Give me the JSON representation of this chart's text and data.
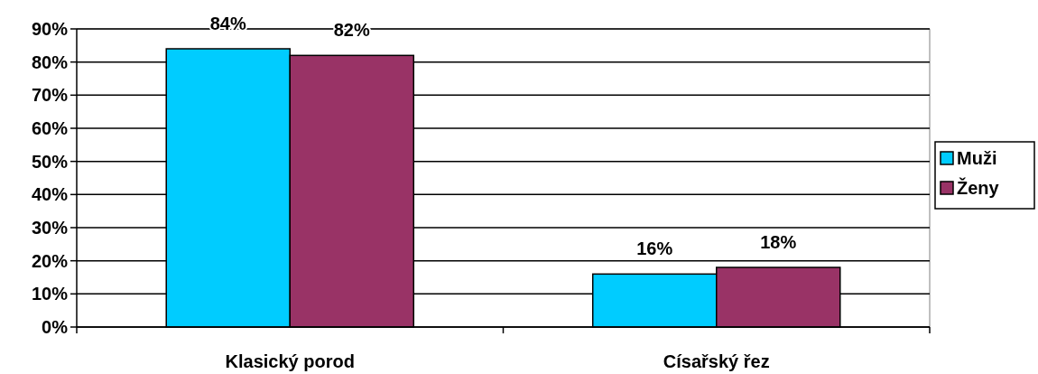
{
  "chart_data": {
    "type": "bar",
    "categories": [
      "Klasický porod",
      "Císařský řez"
    ],
    "series": [
      {
        "name": "Muži",
        "color": "#00ccff",
        "values": [
          84,
          16
        ],
        "value_labels": [
          "84%",
          "16%"
        ]
      },
      {
        "name": "Ženy",
        "color": "#993366",
        "values": [
          82,
          18
        ],
        "value_labels": [
          "82%",
          "18%"
        ]
      }
    ],
    "ylim": [
      0,
      90
    ],
    "yticks": [
      {
        "value": 0,
        "label": "0%"
      },
      {
        "value": 10,
        "label": "10%"
      },
      {
        "value": 20,
        "label": "20%"
      },
      {
        "value": 30,
        "label": "30%"
      },
      {
        "value": 40,
        "label": "40%"
      },
      {
        "value": 50,
        "label": "50%"
      },
      {
        "value": 60,
        "label": "60%"
      },
      {
        "value": 70,
        "label": "70%"
      },
      {
        "value": 80,
        "label": "80%"
      },
      {
        "value": 90,
        "label": "90%"
      }
    ],
    "grid": "y",
    "legend": "right"
  }
}
